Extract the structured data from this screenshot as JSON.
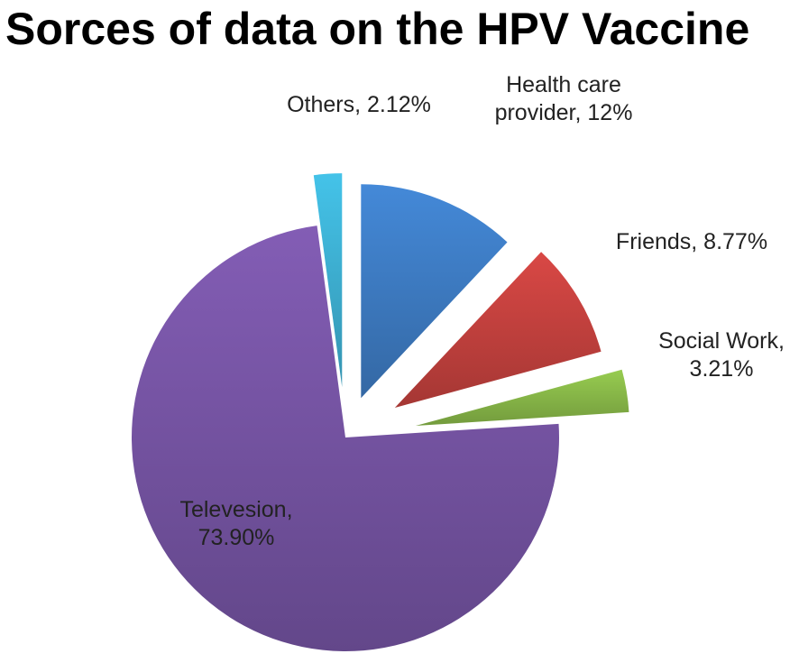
{
  "title": "Sorces of data on the HPV Vaccine",
  "chart_data": {
    "type": "pie",
    "title": "Sorces of data on the HPV Vaccine",
    "exploded": true,
    "slices": [
      {
        "name": "Health care provider",
        "value": 12.0,
        "label_lines": [
          "Health care",
          "provider, 12%"
        ],
        "color": "#3f7fc8"
      },
      {
        "name": "Friends",
        "value": 8.77,
        "label_lines": [
          "Friends, 8.77%"
        ],
        "color": "#c94340"
      },
      {
        "name": "Social Work",
        "value": 3.21,
        "label_lines": [
          "Social Work,",
          "3.21%"
        ],
        "color": "#8cbd4a"
      },
      {
        "name": "Televesion",
        "value": 73.9,
        "label_lines": [
          "Televesion,",
          "73.90%"
        ],
        "color": "#7956a8"
      },
      {
        "name": "Others",
        "value": 2.12,
        "label_lines": [
          "Others, 2.12%"
        ],
        "color": "#3fb5d8"
      }
    ]
  }
}
